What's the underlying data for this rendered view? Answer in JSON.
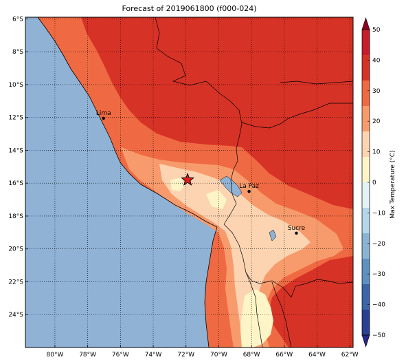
{
  "title": "Forecast of 2019061800 (f000-024)",
  "lon_ticks": [
    "80°W",
    "78°W",
    "76°W",
    "74°W",
    "72°W",
    "70°W",
    "68°W",
    "66°W",
    "64°W",
    "62°W"
  ],
  "lat_ticks": [
    "6°S",
    "8°S",
    "10°S",
    "12°S",
    "14°S",
    "16°S",
    "18°S",
    "20°S",
    "22°S",
    "24°S"
  ],
  "colorbar": {
    "label": "Max Temperature (°C)",
    "ticks": [
      "50",
      "40",
      "30",
      "20",
      "10",
      "0",
      "−10",
      "−20",
      "−30",
      "−40",
      "−50"
    ],
    "colors": [
      "#8b0021",
      "#c71d2a",
      "#d73226",
      "#ef6a42",
      "#f89b6c",
      "#fdd4b2",
      "#fdf5c7",
      "#e3f2f6",
      "#b4d6e8",
      "#8bb3d4",
      "#5e91c1",
      "#3a65a8",
      "#2b3f93",
      "#272885"
    ]
  },
  "cities": [
    {
      "name": "Lima",
      "lon": -77.03,
      "lat": -12.05
    },
    {
      "name": "La Paz",
      "lon": -68.15,
      "lat": -16.5
    },
    {
      "name": "Sucre",
      "lon": -65.26,
      "lat": -19.04
    }
  ],
  "marker": {
    "name": "forecast-point",
    "lon": -71.9,
    "lat": -15.8
  },
  "colors": {
    "ocean": "#8fb2d5",
    "frame": "#000000"
  }
}
